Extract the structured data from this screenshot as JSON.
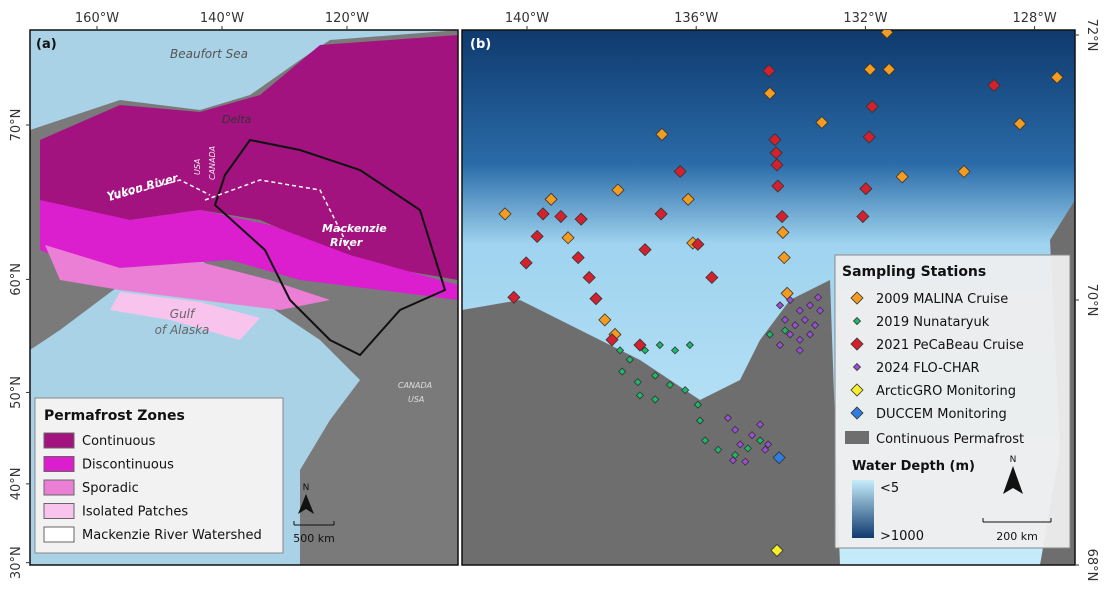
{
  "panel_a": {
    "label": "(a)",
    "sea_label": "Beaufort Sea",
    "delta_label": "Delta",
    "yukon_label": "Yukon River",
    "usa_label": "USA",
    "canada_label": "CANADA",
    "mackenzie_label": [
      "Mackenzie",
      "River"
    ],
    "gulf_label": [
      "Gulf",
      "of Alaska"
    ],
    "border_canada": "CANADA",
    "border_usa": "USA",
    "xticks": [
      {
        "value": -160,
        "label": "160°W"
      },
      {
        "value": -140,
        "label": "140°W"
      },
      {
        "value": -120,
        "label": "120°W"
      }
    ],
    "yticks": [
      {
        "value": 70,
        "label": "70°N"
      },
      {
        "value": 60,
        "label": "60°N"
      },
      {
        "value": 50,
        "label": "50°N"
      },
      {
        "value": 40,
        "label": "40°N"
      },
      {
        "value": 30,
        "label": "30°N"
      }
    ],
    "legend": {
      "title": "Permafrost Zones",
      "items": [
        {
          "name": "Continuous",
          "color": "#a3137f"
        },
        {
          "name": "Discontinuous",
          "color": "#db1fcf"
        },
        {
          "name": "Sporadic",
          "color": "#ea7fd5"
        },
        {
          "name": "Isolated Patches",
          "color": "#f8c4ee"
        },
        {
          "name": "Mackenzie River Watershed",
          "color": "#ffffff"
        }
      ]
    },
    "north": "N",
    "scale": "500 km"
  },
  "panel_b": {
    "label": "(b)",
    "xticks": [
      {
        "value": -140,
        "label": "140°W"
      },
      {
        "value": -136,
        "label": "136°W"
      },
      {
        "value": -132,
        "label": "132°W"
      },
      {
        "value": -128,
        "label": "128°W"
      }
    ],
    "yticks": [
      {
        "value": 72,
        "label": "72°N"
      },
      {
        "value": 70,
        "label": "70°N"
      },
      {
        "value": 68,
        "label": "68°N"
      }
    ],
    "legend_title": "Sampling Stations",
    "stations": [
      {
        "name": "2009 MALINA Cruise",
        "color": "#f39c1f",
        "size": 6,
        "points": [
          [
            -140.52,
            70.65
          ],
          [
            -139.43,
            70.76
          ],
          [
            -139.03,
            70.47
          ],
          [
            -137.85,
            70.83
          ],
          [
            -136.81,
            71.25
          ],
          [
            -136.19,
            70.76
          ],
          [
            -136.08,
            70.43
          ],
          [
            -134.26,
            71.56
          ],
          [
            -133.95,
            70.51
          ],
          [
            -133.92,
            70.32
          ],
          [
            -133.85,
            70.05
          ],
          [
            -133.03,
            71.34
          ],
          [
            -131.89,
            71.74
          ],
          [
            -131.49,
            72.02
          ],
          [
            -131.44,
            71.74
          ],
          [
            -131.13,
            70.93
          ],
          [
            -129.67,
            70.97
          ],
          [
            -128.35,
            71.33
          ],
          [
            -127.47,
            71.68
          ],
          [
            -138.16,
            69.85
          ],
          [
            -137.92,
            69.74
          ]
        ]
      },
      {
        "name": "2019 Nunataryuk",
        "color": "#1fb86a",
        "size": 3.5,
        "points": [
          [
            -137.8,
            69.62
          ],
          [
            -137.57,
            69.55
          ],
          [
            -137.21,
            69.62
          ],
          [
            -136.86,
            69.66
          ],
          [
            -136.5,
            69.62
          ],
          [
            -136.15,
            69.66
          ],
          [
            -137.75,
            69.46
          ],
          [
            -137.38,
            69.38
          ],
          [
            -136.97,
            69.43
          ],
          [
            -136.62,
            69.36
          ],
          [
            -136.26,
            69.32
          ],
          [
            -137.33,
            69.28
          ],
          [
            -136.97,
            69.25
          ],
          [
            -135.96,
            69.21
          ],
          [
            -135.91,
            69.09
          ],
          [
            -135.79,
            68.94
          ],
          [
            -135.48,
            68.87
          ],
          [
            -135.08,
            68.83
          ],
          [
            -134.78,
            68.88
          ],
          [
            -134.26,
            69.74
          ],
          [
            -133.9,
            69.77
          ],
          [
            -134.49,
            68.94
          ]
        ]
      },
      {
        "name": "2021 PeCaBeau Cruise",
        "color": "#d3212d",
        "size": 6,
        "points": [
          [
            -140.31,
            70.02
          ],
          [
            -140.02,
            70.28
          ],
          [
            -139.76,
            70.48
          ],
          [
            -139.62,
            70.65
          ],
          [
            -139.2,
            70.63
          ],
          [
            -138.72,
            70.61
          ],
          [
            -138.79,
            70.32
          ],
          [
            -138.53,
            70.17
          ],
          [
            -138.37,
            70.01
          ],
          [
            -137.99,
            69.7
          ],
          [
            -137.33,
            69.66
          ],
          [
            -137.21,
            70.38
          ],
          [
            -136.83,
            70.65
          ],
          [
            -136.38,
            70.97
          ],
          [
            -135.96,
            70.42
          ],
          [
            -135.63,
            70.17
          ],
          [
            -134.28,
            71.73
          ],
          [
            -134.14,
            71.21
          ],
          [
            -134.11,
            71.11
          ],
          [
            -134.09,
            71.02
          ],
          [
            -134.07,
            70.86
          ],
          [
            -133.97,
            70.63
          ],
          [
            -131.84,
            71.46
          ],
          [
            -131.91,
            71.23
          ],
          [
            -131.99,
            70.84
          ],
          [
            -132.06,
            70.63
          ],
          [
            -128.96,
            71.62
          ]
        ]
      },
      {
        "name": "2024 FLO-CHAR",
        "color": "#9b4fd6",
        "size": 3.5,
        "points": [
          [
            -134.02,
            69.96
          ],
          [
            -133.78,
            70.0
          ],
          [
            -133.55,
            69.92
          ],
          [
            -133.31,
            69.96
          ],
          [
            -133.07,
            69.92
          ],
          [
            -133.9,
            69.85
          ],
          [
            -133.66,
            69.81
          ],
          [
            -133.43,
            69.85
          ],
          [
            -133.19,
            69.81
          ],
          [
            -133.78,
            69.74
          ],
          [
            -133.55,
            69.7
          ],
          [
            -133.31,
            69.74
          ],
          [
            -134.02,
            69.66
          ],
          [
            -133.55,
            69.62
          ],
          [
            -133.12,
            70.02
          ],
          [
            -135.25,
            69.11
          ],
          [
            -135.08,
            69.02
          ],
          [
            -134.96,
            68.91
          ],
          [
            -134.68,
            68.98
          ],
          [
            -134.49,
            69.06
          ],
          [
            -134.37,
            68.87
          ],
          [
            -134.84,
            68.78
          ],
          [
            -134.3,
            68.91
          ],
          [
            -135.13,
            68.79
          ]
        ]
      },
      {
        "name": "ArcticGRO Monitoring",
        "color": "#f5ef2a",
        "size": 6,
        "points": [
          [
            -134.09,
            68.11
          ]
        ]
      },
      {
        "name": "DUCCEM Monitoring",
        "color": "#2f7de0",
        "size": 6,
        "points": [
          [
            -134.04,
            68.81
          ]
        ]
      }
    ],
    "permafrost_label": "Continuous Permafrost",
    "permafrost_color": "#6e6e6e",
    "depth_title": "Water Depth (m)",
    "depth_min": "<5",
    "depth_max": ">1000",
    "north": "N",
    "scale": "200 km"
  }
}
